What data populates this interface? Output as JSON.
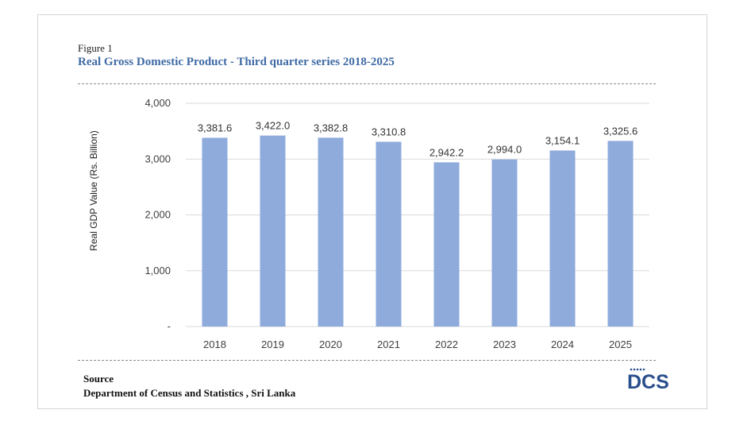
{
  "figure": {
    "label": "Figure 1",
    "title": "Real Gross Domestic Product - Third quarter series  2018-2025"
  },
  "chart_data": {
    "type": "bar",
    "title": "Real Gross Domestic Product - Third quarter series  2018-2025",
    "xlabel": "",
    "ylabel": "Real GDP Value (Rs. Billion)",
    "categories": [
      "2018",
      "2019",
      "2020",
      "2021",
      "2022",
      "2023",
      "2024",
      "2025"
    ],
    "values": [
      3381.6,
      3422.0,
      3382.8,
      3310.8,
      2942.2,
      2994.0,
      3154.1,
      3325.6
    ],
    "value_labels": [
      "3,381.6",
      "3,422.0",
      "3,382.8",
      "3,310.8",
      "2,942.2",
      "2,994.0",
      "3,154.1",
      "3,325.6"
    ],
    "ylim": [
      0,
      4000
    ],
    "yticks": [
      0,
      1000,
      2000,
      3000,
      4000
    ],
    "ytick_labels": [
      "-",
      "1,000",
      "2,000",
      "3,000",
      "4,000"
    ],
    "grid": true,
    "legend": "none",
    "bar_color": "#8eabdc"
  },
  "source": {
    "heading": "Source",
    "text": "Department of Census and Statistics , Sri Lanka"
  },
  "logo": {
    "text": "DCS",
    "color": "#2a4e8c"
  },
  "colors": {
    "title": "#3f6aa6",
    "gridline": "#d9d9d9",
    "axis_text": "#404040"
  }
}
